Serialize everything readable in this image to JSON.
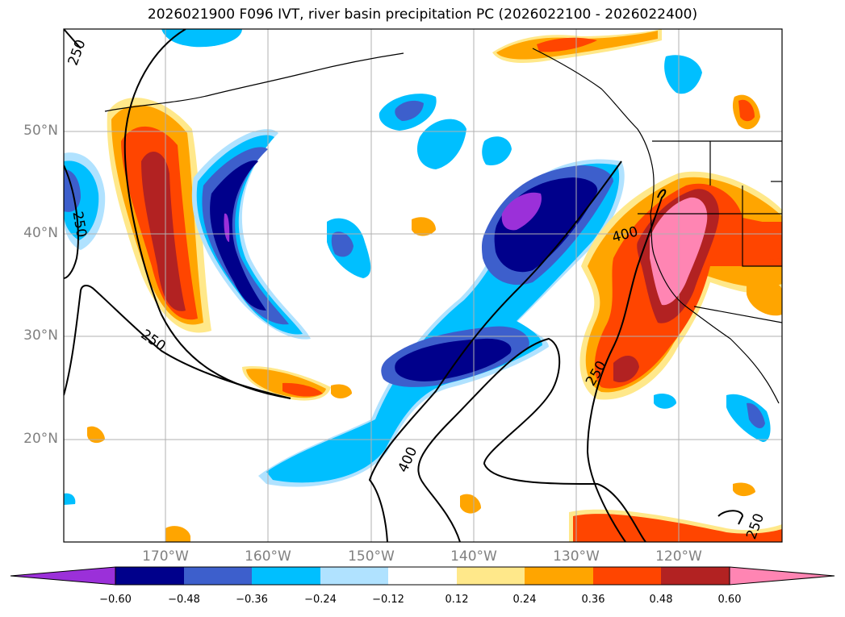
{
  "title": "2026021900 F096 IVT, river basin precipitation PC (2026022100 - 2026022400)",
  "lat_labels": [
    "50°N",
    "40°N",
    "30°N",
    "20°N"
  ],
  "lon_labels": [
    "170°W",
    "160°W",
    "150°W",
    "140°W",
    "130°W",
    "120°W"
  ],
  "contour_labels": [
    "250",
    "250",
    "250",
    "400",
    "400",
    "250",
    "250"
  ],
  "colorbar": {
    "tick_labels": [
      "−0.60",
      "−0.48",
      "−0.36",
      "−0.24",
      "−0.12",
      "0.12",
      "0.24",
      "0.36",
      "0.48",
      "0.60"
    ],
    "colors": [
      "#9b30d9",
      "#00008b",
      "#3d5fcc",
      "#00bfff",
      "#b0e2ff",
      "#ffffff",
      "#ffe88a",
      "#ffa500",
      "#ff4500",
      "#b22222",
      "#ff85b3"
    ]
  },
  "palette": {
    "purple": "#9b30d9",
    "navy": "#00008b",
    "blue": "#3d5fcc",
    "sky": "#00bfff",
    "lightblue": "#b0e2ff",
    "paleyellow": "#ffe88a",
    "orange": "#ffa500",
    "redorange": "#ff4500",
    "darkred": "#b22222",
    "pink": "#ff85b3"
  }
}
